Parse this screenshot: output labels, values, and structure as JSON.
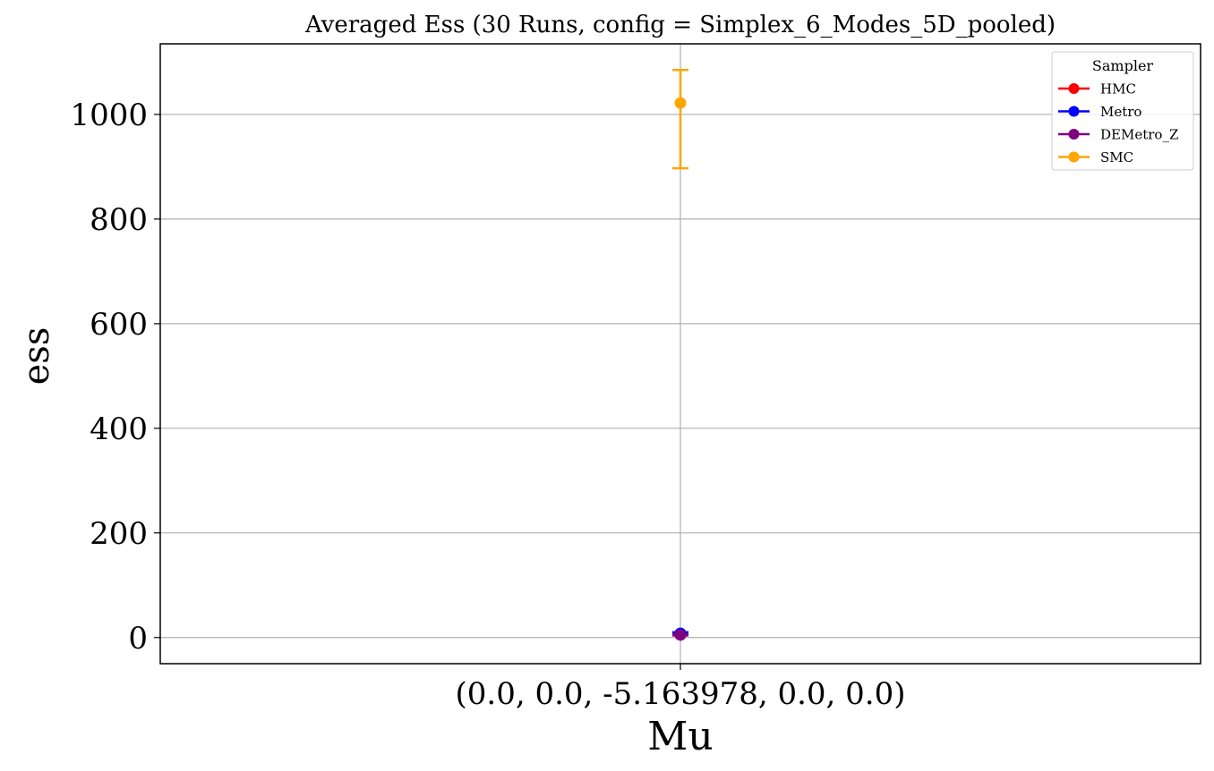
{
  "chart_data": {
    "type": "scatter",
    "title": "Averaged Ess (30 Runs, config = Simplex_6_Modes_5D_pooled)",
    "xlabel": "Mu",
    "ylabel": "ess",
    "categories": [
      "(0.0, 0.0, -5.163978, 0.0, 0.0)"
    ],
    "ylim": [
      -50,
      1135
    ],
    "yticks": [
      0,
      200,
      400,
      600,
      800,
      1000
    ],
    "grid": true,
    "legend": {
      "title": "Sampler",
      "placement": "top-right"
    },
    "series": [
      {
        "name": "HMC",
        "color": "#ff0000",
        "values": [
          5
        ],
        "error_low": [
          5
        ],
        "error_high": [
          5
        ]
      },
      {
        "name": "Metro",
        "color": "#0000ff",
        "values": [
          8
        ],
        "error_low": [
          7
        ],
        "error_high": [
          10
        ]
      },
      {
        "name": "DEMetro_Z",
        "color": "#800080",
        "values": [
          5
        ],
        "error_low": [
          4
        ],
        "error_high": [
          6
        ]
      },
      {
        "name": "SMC",
        "color": "#ffa500",
        "values": [
          1022
        ],
        "error_low": [
          897
        ],
        "error_high": [
          1085
        ]
      }
    ]
  }
}
